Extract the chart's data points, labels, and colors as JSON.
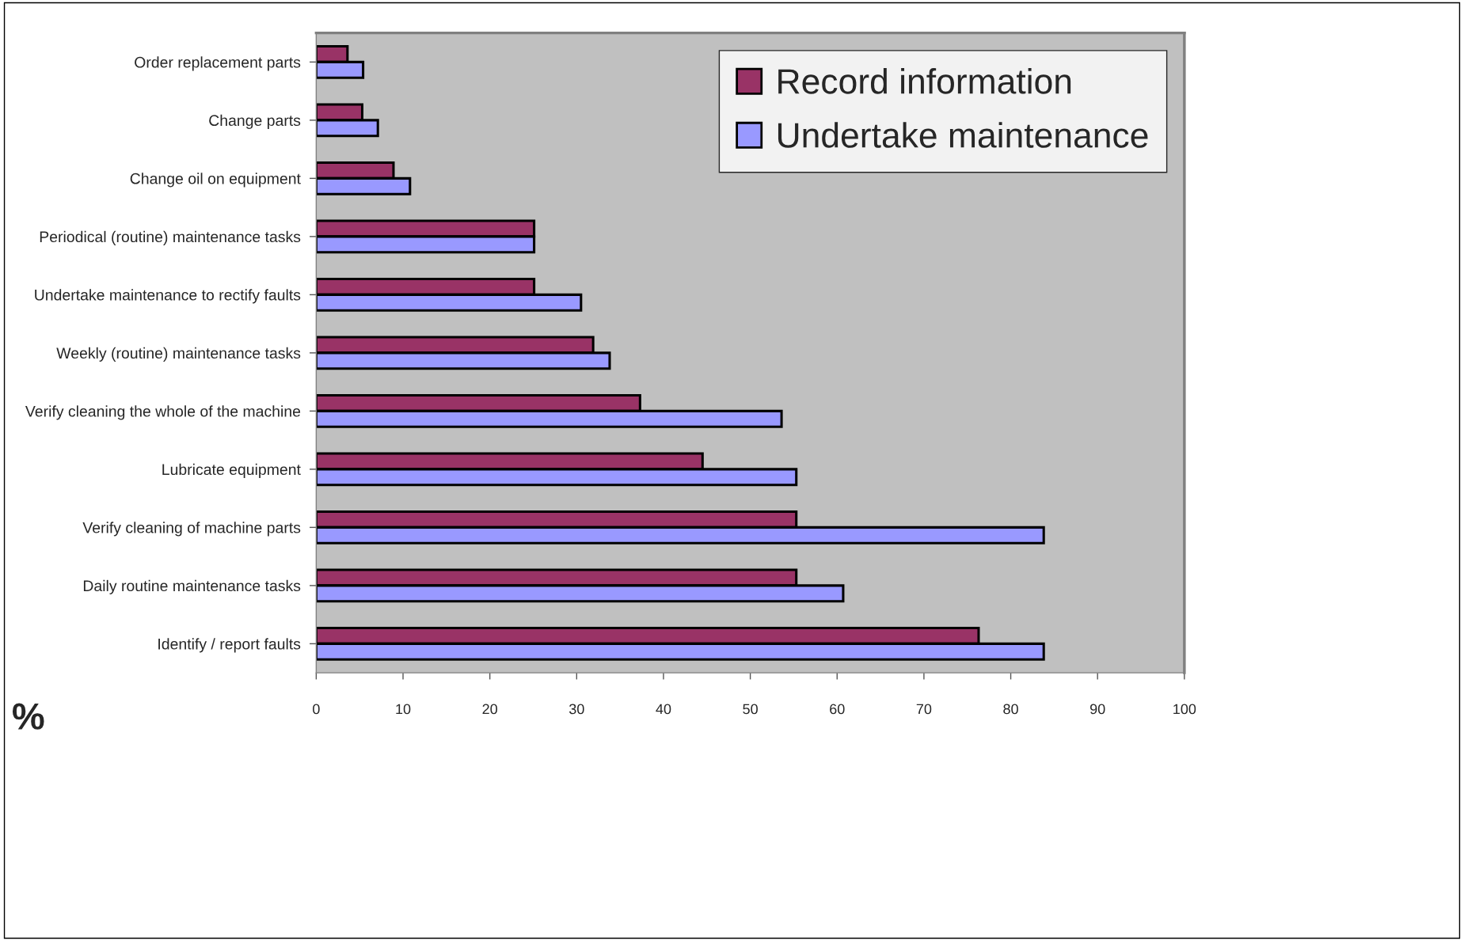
{
  "chart_data": {
    "type": "bar",
    "orientation": "horizontal",
    "xlabel": "%",
    "categories": [
      "Order replacement parts",
      "Change parts",
      "Change oil on equipment",
      "Periodical (routine) maintenance tasks",
      "Undertake maintenance to rectify faults",
      "Weekly (routine) maintenance tasks",
      "Verify cleaning the whole of the machine",
      "Lubricate equipment",
      "Verify cleaning of machine parts",
      "Daily routine maintenance tasks",
      "Identify / report faults"
    ],
    "series": [
      {
        "name": "Record information",
        "color": "#993366",
        "values": [
          3.6,
          5.3,
          8.9,
          25.1,
          25.1,
          31.9,
          37.3,
          44.5,
          55.3,
          55.3,
          76.3
        ]
      },
      {
        "name": "Undertake maintenance",
        "color": "#9999ff",
        "values": [
          5.4,
          7.1,
          10.8,
          25.1,
          30.5,
          33.8,
          53.6,
          55.3,
          83.8,
          60.7,
          83.8
        ]
      }
    ],
    "xlim": [
      0,
      100
    ],
    "xticks": [
      0,
      10,
      20,
      30,
      40,
      50,
      60,
      70,
      80,
      90,
      100
    ],
    "grid": false,
    "legend": "top right"
  }
}
